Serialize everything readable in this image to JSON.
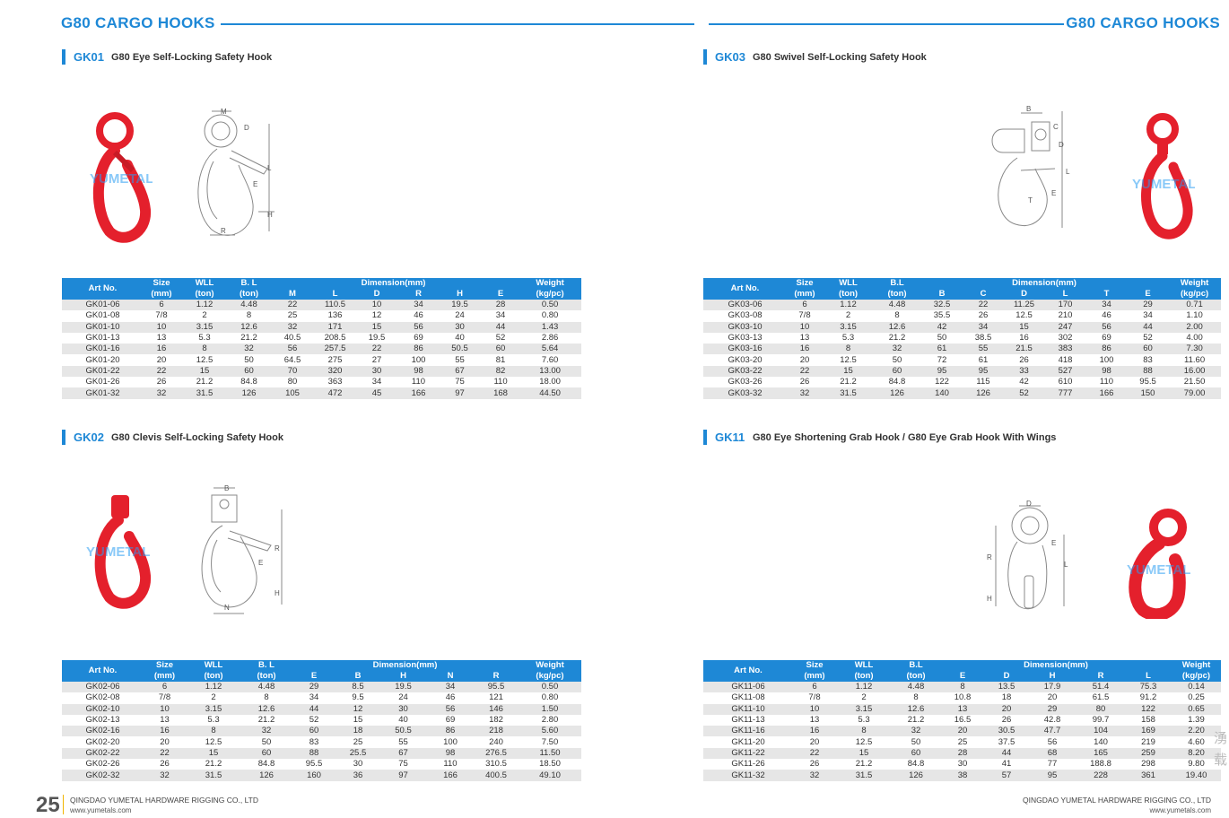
{
  "header": {
    "left_title": "G80 CARGO HOOKS",
    "right_title": "G80 CARGO HOOKS"
  },
  "sections": {
    "gk01": {
      "code": "GK01",
      "desc": "G80 Eye Self-Locking Safety Hook",
      "drawing_labels": [
        "M",
        "D",
        "L",
        "E",
        "H",
        "R"
      ],
      "watermark": "YUMETAL",
      "table": {
        "size_top": "Size",
        "size_bot": "(mm)",
        "wll_top": "WLL",
        "wll_bot": "(ton)",
        "bl_top": "B. L",
        "bl_bot": "(ton)",
        "art": "Art  No.",
        "dimension": "Dimension(mm)",
        "weight_top": "Weight",
        "weight_bot": "(kg/pc)",
        "dims": [
          "M",
          "L",
          "D",
          "R",
          "H",
          "E"
        ],
        "rows": [
          [
            "GK01-06",
            "6",
            "1.12",
            "4.48",
            "22",
            "110.5",
            "10",
            "34",
            "19.5",
            "28",
            "0.50"
          ],
          [
            "GK01-08",
            "7/8",
            "2",
            "8",
            "25",
            "136",
            "12",
            "46",
            "24",
            "34",
            "0.80"
          ],
          [
            "GK01-10",
            "10",
            "3.15",
            "12.6",
            "32",
            "171",
            "15",
            "56",
            "30",
            "44",
            "1.43"
          ],
          [
            "GK01-13",
            "13",
            "5.3",
            "21.2",
            "40.5",
            "208.5",
            "19.5",
            "69",
            "40",
            "52",
            "2.86"
          ],
          [
            "GK01-16",
            "16",
            "8",
            "32",
            "56",
            "257.5",
            "22",
            "86",
            "50.5",
            "60",
            "5.64"
          ],
          [
            "GK01-20",
            "20",
            "12.5",
            "50",
            "64.5",
            "275",
            "27",
            "100",
            "55",
            "81",
            "7.60"
          ],
          [
            "GK01-22",
            "22",
            "15",
            "60",
            "70",
            "320",
            "30",
            "98",
            "67",
            "82",
            "13.00"
          ],
          [
            "GK01-26",
            "26",
            "21.2",
            "84.8",
            "80",
            "363",
            "34",
            "110",
            "75",
            "110",
            "18.00"
          ],
          [
            "GK01-32",
            "32",
            "31.5",
            "126",
            "105",
            "472",
            "45",
            "166",
            "97",
            "168",
            "44.50"
          ]
        ]
      }
    },
    "gk02": {
      "code": "GK02",
      "desc": "G80 Clevis Self-Locking Safety Hook",
      "drawing_labels": [
        "B",
        "R",
        "E",
        "H",
        "N"
      ],
      "watermark": "YUMETAL",
      "table": {
        "size_top": "Size",
        "size_bot": "(mm)",
        "wll_top": "WLL",
        "wll_bot": "(ton)",
        "bl_top": "B. L",
        "bl_bot": "(ton)",
        "art": "Art  No.",
        "dimension": "Dimension(mm)",
        "weight_top": "Weight",
        "weight_bot": "(kg/pc)",
        "dims": [
          "E",
          "B",
          "H",
          "N",
          "R"
        ],
        "rows": [
          [
            "GK02-06",
            "6",
            "1.12",
            "4.48",
            "29",
            "8.5",
            "19.5",
            "34",
            "95.5",
            "0.50"
          ],
          [
            "GK02-08",
            "7/8",
            "2",
            "8",
            "34",
            "9.5",
            "24",
            "46",
            "121",
            "0.80"
          ],
          [
            "GK02-10",
            "10",
            "3.15",
            "12.6",
            "44",
            "12",
            "30",
            "56",
            "146",
            "1.50"
          ],
          [
            "GK02-13",
            "13",
            "5.3",
            "21.2",
            "52",
            "15",
            "40",
            "69",
            "182",
            "2.80"
          ],
          [
            "GK02-16",
            "16",
            "8",
            "32",
            "60",
            "18",
            "50.5",
            "86",
            "218",
            "5.60"
          ],
          [
            "GK02-20",
            "20",
            "12.5",
            "50",
            "83",
            "25",
            "55",
            "100",
            "240",
            "7.50"
          ],
          [
            "GK02-22",
            "22",
            "15",
            "60",
            "88",
            "25.5",
            "67",
            "98",
            "276.5",
            "11.50"
          ],
          [
            "GK02-26",
            "26",
            "21.2",
            "84.8",
            "95.5",
            "30",
            "75",
            "110",
            "310.5",
            "18.50"
          ],
          [
            "GK02-32",
            "32",
            "31.5",
            "126",
            "160",
            "36",
            "97",
            "166",
            "400.5",
            "49.10"
          ]
        ]
      }
    },
    "gk03": {
      "code": "GK03",
      "desc": "G80 Swivel Self-Locking Safety Hook",
      "drawing_labels": [
        "B",
        "C",
        "D",
        "L",
        "E",
        "T"
      ],
      "watermark": "YUMETAL",
      "table": {
        "size_top": "Size",
        "size_bot": "(mm)",
        "wll_top": "WLL",
        "wll_bot": "(ton)",
        "bl_top": "B.L",
        "bl_bot": "(ton)",
        "art": "Art  No.",
        "dimension": "Dimension(mm)",
        "weight_top": "Weight",
        "weight_bot": "(kg/pc)",
        "dims": [
          "B",
          "C",
          "D",
          "L",
          "T",
          "E"
        ],
        "rows": [
          [
            "GK03-06",
            "6",
            "1.12",
            "4.48",
            "32.5",
            "22",
            "11.25",
            "170",
            "34",
            "29",
            "0.71"
          ],
          [
            "GK03-08",
            "7/8",
            "2",
            "8",
            "35.5",
            "26",
            "12.5",
            "210",
            "46",
            "34",
            "1.10"
          ],
          [
            "GK03-10",
            "10",
            "3.15",
            "12.6",
            "42",
            "34",
            "15",
            "247",
            "56",
            "44",
            "2.00"
          ],
          [
            "GK03-13",
            "13",
            "5.3",
            "21.2",
            "50",
            "38.5",
            "16",
            "302",
            "69",
            "52",
            "4.00"
          ],
          [
            "GK03-16",
            "16",
            "8",
            "32",
            "61",
            "55",
            "21.5",
            "383",
            "86",
            "60",
            "7.30"
          ],
          [
            "GK03-20",
            "20",
            "12.5",
            "50",
            "72",
            "61",
            "26",
            "418",
            "100",
            "83",
            "11.60"
          ],
          [
            "GK03-22",
            "22",
            "15",
            "60",
            "95",
            "95",
            "33",
            "527",
            "98",
            "88",
            "16.00"
          ],
          [
            "GK03-26",
            "26",
            "21.2",
            "84.8",
            "122",
            "115",
            "42",
            "610",
            "110",
            "95.5",
            "21.50"
          ],
          [
            "GK03-32",
            "32",
            "31.5",
            "126",
            "140",
            "126",
            "52",
            "777",
            "166",
            "150",
            "79.00"
          ]
        ]
      }
    },
    "gk11": {
      "code": "GK11",
      "desc": "G80 Eye Shortening Grab Hook  / G80 Eye Grab Hook With Wings",
      "drawing_labels": [
        "D",
        "R",
        "E",
        "L",
        "H"
      ],
      "watermark": "YUMETAL",
      "table": {
        "size_top": "Size",
        "size_bot": "(mm)",
        "wll_top": "WLL",
        "wll_bot": "(ton)",
        "bl_top": "B.L",
        "bl_bot": "(ton)",
        "art": "Art  No.",
        "dimension": "Dimension(mm)",
        "weight_top": "Weight",
        "weight_bot": "(kg/pc)",
        "dims": [
          "E",
          "D",
          "H",
          "R",
          "L"
        ],
        "rows": [
          [
            "GK11-06",
            "6",
            "1.12",
            "4.48",
            "8",
            "13.5",
            "17.9",
            "51.4",
            "75.3",
            "0.14"
          ],
          [
            "GK11-08",
            "7/8",
            "2",
            "8",
            "10.8",
            "18",
            "20",
            "61.5",
            "91.2",
            "0.25"
          ],
          [
            "GK11-10",
            "10",
            "3.15",
            "12.6",
            "13",
            "20",
            "29",
            "80",
            "122",
            "0.65"
          ],
          [
            "GK11-13",
            "13",
            "5.3",
            "21.2",
            "16.5",
            "26",
            "42.8",
            "99.7",
            "158",
            "1.39"
          ],
          [
            "GK11-16",
            "16",
            "8",
            "32",
            "20",
            "30.5",
            "47.7",
            "104",
            "169",
            "2.20"
          ],
          [
            "GK11-20",
            "20",
            "12.5",
            "50",
            "25",
            "37.5",
            "56",
            "140",
            "219",
            "4.60"
          ],
          [
            "GK11-22",
            "22",
            "15",
            "60",
            "28",
            "44",
            "68",
            "165",
            "259",
            "8.20"
          ],
          [
            "GK11-26",
            "26",
            "21.2",
            "84.8",
            "30",
            "41",
            "77",
            "188.8",
            "298",
            "9.80"
          ],
          [
            "GK11-32",
            "32",
            "31.5",
            "126",
            "38",
            "57",
            "95",
            "228",
            "361",
            "19.40"
          ]
        ]
      }
    }
  },
  "footer": {
    "page_number": "25",
    "left_company": "QINGDAO YUMETAL HARDWARE RIGGING CO., LTD",
    "left_url": "www.yumetals.com",
    "right_company": "QINGDAO YUMETAL HARDWARE RIGGING CO., LTD",
    "right_url": "www.yumetals.com",
    "edge_chars": "湧\n载"
  },
  "colors": {
    "accent": "#1e88d6",
    "hook_red": "#e4202c",
    "row_stripe": "#e6e6e6"
  }
}
